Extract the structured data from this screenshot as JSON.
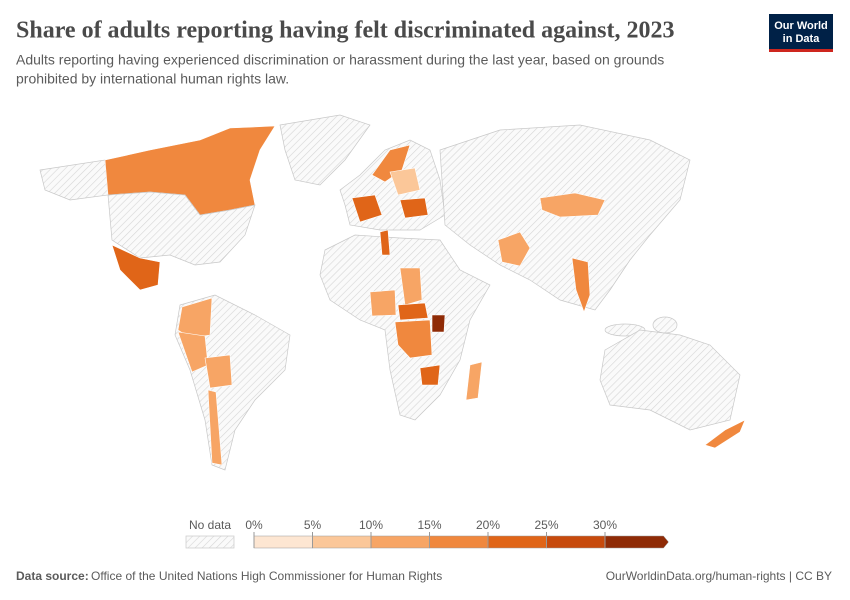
{
  "header": {
    "title": "Share of adults reporting having felt discriminated against, 2023",
    "subtitle": [
      "Adults reporting having experienced discrimination or harassment during the last year, based on grounds",
      "prohibited by international human rights law."
    ],
    "logo": [
      "Our World",
      "in Data"
    ]
  },
  "legend": {
    "no_data": "No data",
    "ticks": [
      {
        "value": 0,
        "label": "0%"
      },
      {
        "value": 5,
        "label": "5%"
      },
      {
        "value": 10,
        "label": "10%"
      },
      {
        "value": 15,
        "label": "15%"
      },
      {
        "value": 20,
        "label": "20%"
      },
      {
        "value": 25,
        "label": "25%"
      },
      {
        "value": 30,
        "label": "30%"
      }
    ],
    "colors": [
      "#fde6d2",
      "#fbc799",
      "#f7a565",
      "#f0883e",
      "#e06518",
      "#c74a0c",
      "#8f2b06"
    ]
  },
  "footer": {
    "source_label": "Data source:",
    "source": "Office of the United Nations High Commissioner for Human Rights",
    "url": "OurWorldinData.org/human-rights | CC BY"
  }
}
